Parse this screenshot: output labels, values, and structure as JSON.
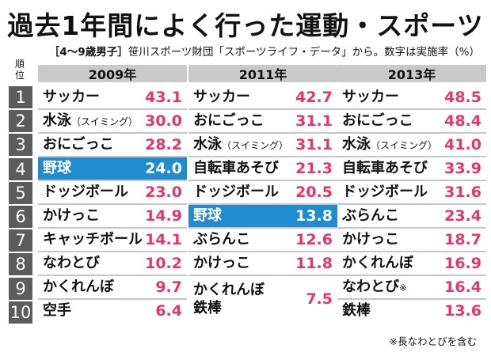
{
  "title": "過去1年間によく行った運動・スポーツ",
  "subtitle_bold": "［4〜9歳男子］",
  "subtitle_rest": "笹川スポーツ財団「スポーツライフ・データ」から。数字は実施率（%）",
  "rank_header": [
    "順",
    "位"
  ],
  "ranks": [
    "1",
    "2",
    "3",
    "4",
    "5",
    "6",
    "7",
    "8",
    "9",
    "10"
  ],
  "columns": [
    {
      "year": "2009年",
      "rows": [
        {
          "name": "サッカー",
          "sub": "",
          "value": "43.1"
        },
        {
          "name": "水泳",
          "sub": "（スイミング）",
          "value": "30.0"
        },
        {
          "name": "おにごっこ",
          "sub": "",
          "value": "28.2"
        },
        {
          "name": "野球",
          "sub": "",
          "value": "24.0",
          "highlight": true
        },
        {
          "name": "ドッジボール",
          "sub": "",
          "value": "23.0"
        },
        {
          "name": "かけっこ",
          "sub": "",
          "value": "14.9"
        },
        {
          "name": "キャッチボール",
          "sub": "",
          "value": "14.1"
        },
        {
          "name": "なわとび",
          "sub": "",
          "value": "10.2"
        },
        {
          "name": "かくれんぼ",
          "sub": "",
          "value": "9.7"
        },
        {
          "name": "空手",
          "sub": "",
          "value": "6.4"
        }
      ]
    },
    {
      "year": "2011年",
      "rows": [
        {
          "name": "サッカー",
          "sub": "",
          "value": "42.7"
        },
        {
          "name": "おにごっこ",
          "sub": "",
          "value": "31.1"
        },
        {
          "name": "水泳",
          "sub": "（スイミング）",
          "value": "31.1"
        },
        {
          "name": "自転車あそび",
          "sub": "",
          "value": "21.3"
        },
        {
          "name": "ドッジボール",
          "sub": "",
          "value": "20.5"
        },
        {
          "name": "野球",
          "sub": "",
          "value": "13.8",
          "highlight": true
        },
        {
          "name": "ぶらんこ",
          "sub": "",
          "value": "12.6"
        },
        {
          "name": "かけっこ",
          "sub": "",
          "value": "11.8"
        },
        {
          "name": "かくれんぼ",
          "line2": "鉄棒",
          "sub": "",
          "value": "7.5",
          "tall": true
        }
      ]
    },
    {
      "year": "2013年",
      "rows": [
        {
          "name": "サッカー",
          "sub": "",
          "value": "48.5"
        },
        {
          "name": "おにごっこ",
          "sub": "",
          "value": "48.4"
        },
        {
          "name": "水泳",
          "sub": "（スイミング）",
          "value": "41.0"
        },
        {
          "name": "自転車あそび",
          "sub": "",
          "value": "33.9"
        },
        {
          "name": "ドッジボール",
          "sub": "",
          "value": "31.6"
        },
        {
          "name": "ぶらんこ",
          "sub": "",
          "value": "23.4"
        },
        {
          "name": "かけっこ",
          "sub": "",
          "value": "18.7"
        },
        {
          "name": "かくれんぼ",
          "sub": "",
          "value": "16.9"
        },
        {
          "name": "なわとび",
          "sub": "※",
          "value": "16.4"
        },
        {
          "name": "鉄棒",
          "sub": "",
          "value": "13.6"
        }
      ]
    }
  ],
  "footnote": "※長なわとびを含む",
  "colors": {
    "value": "#e8336d",
    "highlight": "#1f8bd1",
    "rank_bg": "#5c5c5c",
    "header_bg": "#c9c9c9"
  }
}
